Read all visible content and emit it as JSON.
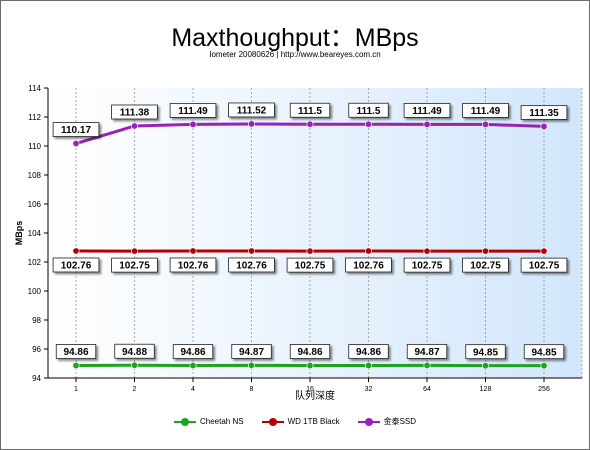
{
  "chart_data": {
    "type": "line",
    "title": "Maxthoughput：MBps",
    "subtitle": "Iometer 20080626 | http://www.beareyes.com.cn",
    "xlabel": "队列深度",
    "ylabel": "MBps",
    "categories": [
      "1",
      "2",
      "4",
      "8",
      "16",
      "32",
      "64",
      "128",
      "256"
    ],
    "ylim": [
      94,
      114
    ],
    "yticks": [
      "94",
      "96",
      "98",
      "100",
      "102",
      "104",
      "106",
      "108",
      "110",
      "112",
      "114"
    ],
    "grid": "vertical-dashed",
    "legend_position": "bottom",
    "series": [
      {
        "name": "Cheetah NS",
        "color": "#1aa51a",
        "values": [
          94.86,
          94.88,
          94.86,
          94.87,
          94.86,
          94.86,
          94.87,
          94.85,
          94.85
        ],
        "labels": [
          "94.86",
          "94.88",
          "94.86",
          "94.87",
          "94.86",
          "94.86",
          "94.87",
          "94.85",
          "94.85"
        ]
      },
      {
        "name": "WD 1TB Black",
        "color": "#b50000",
        "values": [
          102.76,
          102.75,
          102.76,
          102.76,
          102.75,
          102.76,
          102.75,
          102.75,
          102.75
        ],
        "labels": [
          "102.76",
          "102.75",
          "102.76",
          "102.76",
          "102.75",
          "102.76",
          "102.75",
          "102.75",
          "102.75"
        ]
      },
      {
        "name": "金泰SSD",
        "color": "#9b1fb8",
        "values": [
          110.17,
          111.38,
          111.49,
          111.52,
          111.5,
          111.5,
          111.49,
          111.49,
          111.35
        ],
        "labels": [
          "110.17",
          "111.38",
          "111.49",
          "111.52",
          "111.5",
          "111.5",
          "111.49",
          "111.49",
          "111.35"
        ]
      }
    ]
  }
}
